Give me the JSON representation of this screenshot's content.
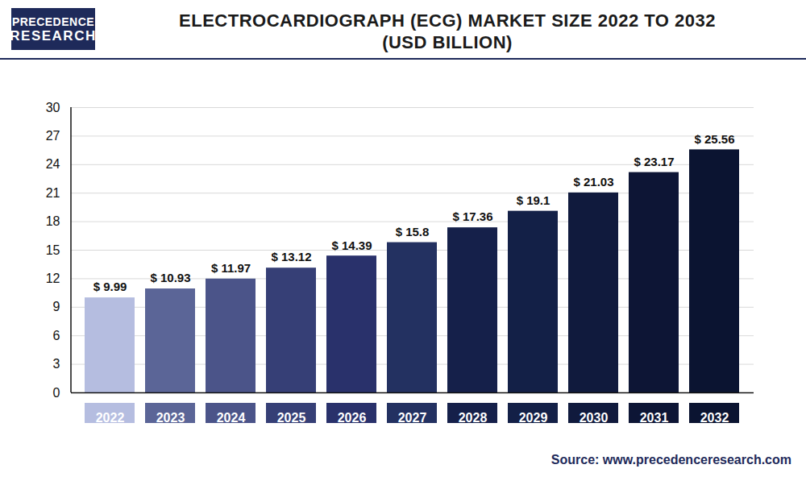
{
  "chart_data": {
    "type": "bar",
    "title": "ELECTROCARDIOGRAPH (ECG) MARKET SIZE 2022 TO 2032",
    "subtitle": "(USD BILLION)",
    "logo": [
      "PRECEDENCE",
      "RESEARCH"
    ],
    "source": "Source: www.precedenceresearch.com",
    "categories": [
      "2022",
      "2023",
      "2024",
      "2025",
      "2026",
      "2027",
      "2028",
      "2029",
      "2030",
      "2031",
      "2032"
    ],
    "values": [
      9.99,
      10.93,
      11.97,
      13.12,
      14.39,
      15.8,
      17.36,
      19.1,
      21.03,
      23.17,
      25.56
    ],
    "value_labels": [
      "$ 9.99",
      "$ 10.93",
      "$ 11.97",
      "$ 13.12",
      "$ 14.39",
      "$ 15.8",
      "$ 17.36",
      "$ 19.1",
      "$ 21.03",
      "$ 23.17",
      "$ 25.56"
    ],
    "colors": [
      "#b5bde0",
      "#5b6597",
      "#4b5489",
      "#363f76",
      "#29316b",
      "#233161",
      "#15204a",
      "#132047",
      "#101a3d",
      "#0d1535",
      "#0b1431"
    ],
    "ylim": [
      0,
      30
    ],
    "yticks": [
      0,
      3,
      6,
      9,
      12,
      15,
      18,
      21,
      24,
      27,
      30
    ],
    "grid": true,
    "data_labels": true
  }
}
